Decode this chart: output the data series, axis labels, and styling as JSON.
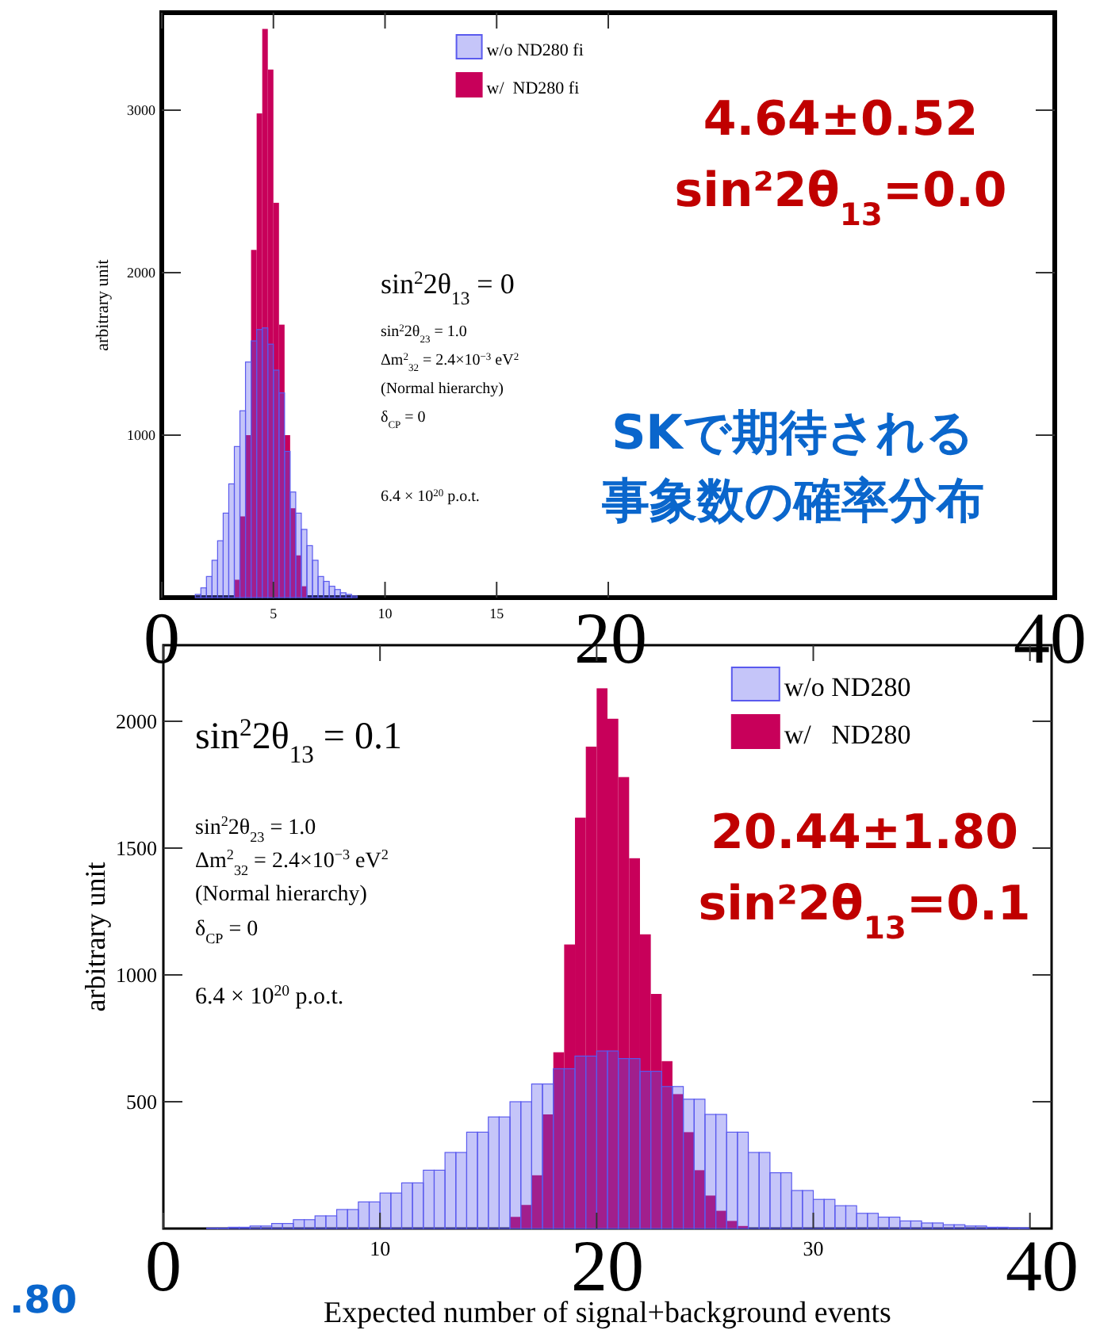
{
  "chart_data": [
    {
      "type": "histogram",
      "ylabel": "arbitrary unit",
      "xlim": [
        0,
        40
      ],
      "ylim": [
        0,
        3600
      ],
      "xticks": [
        {
          "value": 0,
          "label": null
        },
        5,
        10,
        15,
        {
          "value": 20,
          "label": null
        }
      ],
      "yticks": [
        1000,
        2000,
        3000
      ],
      "legend": "top",
      "bins": [
        1.5,
        1.75,
        2,
        2.25,
        2.5,
        2.75,
        3,
        3.25,
        3.5,
        3.75,
        4,
        4.25,
        4.5,
        4.75,
        5,
        5.25,
        5.5,
        5.75,
        6,
        6.25,
        6.5,
        6.75,
        7,
        7.25,
        7.5,
        7.75,
        8,
        8.25,
        8.5,
        8.75
      ],
      "series": [
        {
          "name": "w/o ND280 fi",
          "color": "#5a5aee",
          "values": [
            20,
            60,
            130,
            230,
            350,
            520,
            700,
            930,
            1150,
            1450,
            1580,
            1650,
            1660,
            1560,
            1400,
            1260,
            900,
            650,
            520,
            420,
            320,
            230,
            130,
            100,
            70,
            50,
            30,
            20,
            10
          ]
        },
        {
          "name": "w/  ND280 fi",
          "color": "#c8005a",
          "values": [
            null,
            null,
            null,
            null,
            null,
            null,
            null,
            110,
            500,
            1000,
            2140,
            2980,
            3500,
            3250,
            2430,
            1680,
            1000,
            550,
            260,
            70,
            null,
            null,
            null,
            null,
            null,
            null,
            null,
            null,
            null
          ]
        }
      ],
      "annotations": [
        "sin$^{2}$2θ$_{13}$ = 0",
        "sin$^{2}$2θ$_{23}$ = 1.0",
        "Δm$^{2}$$_{32}$ = 2.4×10$^{−3}$ eV$^{2}$",
        "(Normal hierarchy)",
        "δ$_{CP}$ = 0",
        "6.4 × 10$^{20}$ p.o.t.",
        "4.64±0.52",
        "sin²2θ$_{13}$=0.0",
        "SKで期待される",
        "事象数の確率分布",
        "0",
        "20",
        "40"
      ]
    },
    {
      "type": "histogram",
      "xlabel": "Expected number of signal+background events",
      "ylabel": "arbitrary unit",
      "xlim": [
        0,
        41
      ],
      "ylim": [
        0,
        2300
      ],
      "xticks": [
        {
          "value": 0,
          "label": null
        },
        10,
        {
          "value": 20,
          "label": null
        },
        30,
        {
          "value": 40,
          "label": null
        }
      ],
      "yticks": [
        500,
        1000,
        1500,
        2000
      ],
      "legend": "top right",
      "bins": [
        2,
        2.5,
        3,
        3.5,
        4,
        4.5,
        5,
        5.5,
        6,
        6.5,
        7,
        7.5,
        8,
        8.5,
        9,
        9.5,
        10,
        10.5,
        11,
        11.5,
        12,
        12.5,
        13,
        13.5,
        14,
        14.5,
        15,
        15.5,
        16,
        16.5,
        17,
        17.5,
        18,
        18.5,
        19,
        19.5,
        20,
        20.5,
        21,
        21.5,
        22,
        22.5,
        23,
        23.5,
        24,
        24.5,
        25,
        25.5,
        26,
        26.5,
        27,
        27.5,
        28,
        28.5,
        29,
        29.5,
        30,
        30.5,
        31,
        31.5,
        32,
        32.5,
        33,
        33.5,
        34,
        34.5,
        35,
        35.5,
        36,
        36.5,
        37,
        37.5,
        38,
        38.5,
        39,
        39.5,
        40
      ],
      "series": [
        {
          "name": "w/o ND280",
          "color": "#5a5aee",
          "values": [
            2,
            2,
            5,
            5,
            10,
            10,
            20,
            20,
            35,
            35,
            50,
            50,
            75,
            75,
            105,
            105,
            140,
            140,
            180,
            180,
            230,
            230,
            300,
            300,
            380,
            380,
            440,
            440,
            500,
            500,
            570,
            570,
            630,
            630,
            680,
            680,
            700,
            700,
            670,
            670,
            620,
            620,
            560,
            560,
            510,
            510,
            450,
            450,
            380,
            380,
            300,
            300,
            220,
            220,
            150,
            150,
            115,
            115,
            90,
            90,
            60,
            60,
            45,
            45,
            30,
            30,
            22,
            22,
            15,
            15,
            10,
            10,
            5,
            5,
            3,
            3
          ]
        },
        {
          "name": "w/   ND280",
          "color": "#c8005a",
          "values": [
            null,
            null,
            null,
            null,
            null,
            null,
            null,
            null,
            null,
            null,
            null,
            null,
            null,
            null,
            null,
            null,
            null,
            null,
            null,
            null,
            null,
            null,
            null,
            null,
            null,
            null,
            null,
            null,
            46,
            93,
            210,
            450,
            695,
            1120,
            1620,
            1900,
            2130,
            2010,
            1780,
            1460,
            1160,
            925,
            660,
            530,
            380,
            230,
            130,
            70,
            30,
            10,
            null,
            null,
            null,
            null,
            null,
            null,
            null,
            null,
            null,
            null,
            null,
            null,
            null,
            null,
            null,
            null,
            null,
            null,
            null,
            null,
            null,
            null,
            null,
            null,
            null,
            null
          ]
        }
      ],
      "annotations": [
        "sin$^{2}$2θ$_{13}$ = 0.1",
        "sin$^{2}$2θ$_{23}$ = 1.0",
        "Δm$^{2}$$_{32}$ = 2.4×10$^{−3}$ eV$^{2}$",
        "(Normal hierarchy)",
        "δ$_{CP}$ = 0",
        "6.4 × 10$^{20}$ p.o.t.",
        "20.44±1.80",
        "sin²2θ$_{13}$=0.1",
        ".80",
        "0",
        "20",
        "40"
      ]
    }
  ]
}
